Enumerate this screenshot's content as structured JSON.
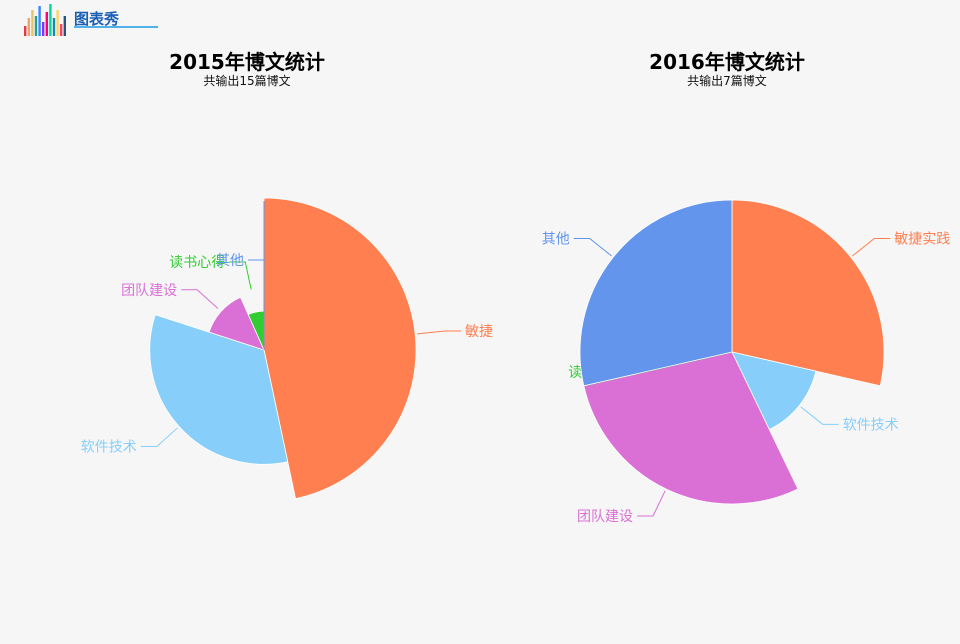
{
  "logo": {
    "text": "图表秀",
    "bar_colors": [
      "#e63946",
      "#f4a261",
      "#e9c46a",
      "#2a9d8f",
      "#3a86ff",
      "#8338ec",
      "#ff006e",
      "#06d6a0",
      "#118ab2",
      "#ffd166",
      "#ef476f",
      "#26547c"
    ]
  },
  "chart_data": [
    {
      "type": "pie",
      "subtype": "rose",
      "title": "2015年博文统计",
      "subtitle": "共输出15篇博文",
      "slices": [
        {
          "name": "敏捷实践",
          "value": 7,
          "color": "#ff7f50"
        },
        {
          "name": "软件技术",
          "value": 5,
          "color": "#87cefa"
        },
        {
          "name": "团队建设",
          "value": 2,
          "color": "#da70d6"
        },
        {
          "name": "读书心得",
          "value": 1,
          "color": "#32cd32"
        },
        {
          "name": "其他",
          "value": 0,
          "color": "#6495ed"
        }
      ]
    },
    {
      "type": "pie",
      "subtype": "rose",
      "title": "2016年博文统计",
      "subtitle": "共输出7篇博文",
      "slices": [
        {
          "name": "敏捷实践",
          "value": 2,
          "color": "#ff7f50"
        },
        {
          "name": "软件技术",
          "value": 1,
          "color": "#87cefa"
        },
        {
          "name": "团队建设",
          "value": 2,
          "color": "#da70d6"
        },
        {
          "name": "读书心得",
          "value": 0,
          "color": "#32cd32"
        },
        {
          "name": "其他",
          "value": 2,
          "color": "#6495ed"
        }
      ]
    }
  ]
}
